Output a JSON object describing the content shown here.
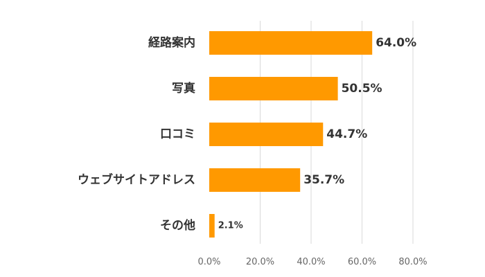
{
  "chart_data": {
    "type": "bar",
    "orientation": "horizontal",
    "categories": [
      "経路案内",
      "写真",
      "口コミ",
      "ウェブサイトアドレス",
      "その他"
    ],
    "values": [
      64.0,
      50.5,
      44.7,
      35.7,
      2.1
    ],
    "data_labels": [
      "64.0%",
      "50.5%",
      "44.7%",
      "35.7%",
      "2.1%"
    ],
    "xlim": [
      0,
      80
    ],
    "x_ticks": [
      0,
      20,
      40,
      60,
      80
    ],
    "x_tick_labels": [
      "0.0%",
      "20.0%",
      "40.0%",
      "60.0%",
      "80.0%"
    ],
    "bar_color": "#FF9900",
    "grid": true,
    "title": "",
    "xlabel": "",
    "ylabel": ""
  }
}
